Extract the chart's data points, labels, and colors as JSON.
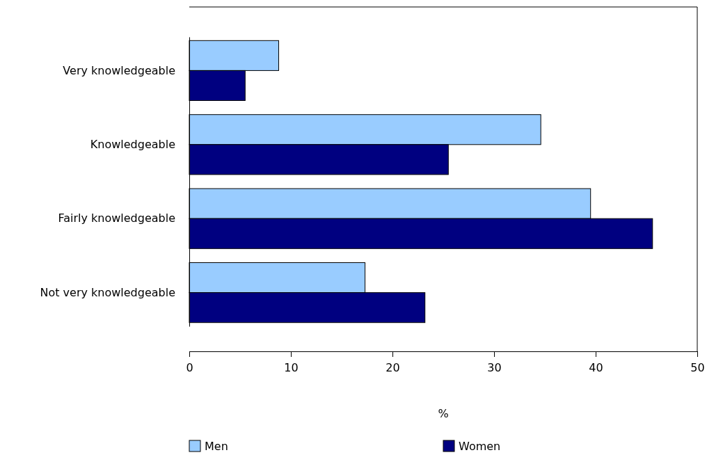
{
  "chart_data": {
    "type": "bar",
    "orientation": "horizontal",
    "xlabel": "%",
    "categories": [
      "Very knowledgeable",
      "Knowledgeable",
      "Fairly knowledgeable",
      "Not very knowledgeable"
    ],
    "series": [
      {
        "name": "Men",
        "color": "#99ccff",
        "values": [
          8.8,
          34.6,
          39.5,
          17.3
        ]
      },
      {
        "name": "Women",
        "color": "#000080",
        "values": [
          5.5,
          25.5,
          45.6,
          23.2
        ]
      }
    ],
    "xlim": [
      0,
      50
    ],
    "xticks": [
      0,
      10,
      20,
      30,
      40,
      50
    ],
    "grid": false,
    "legend": "bottom"
  }
}
